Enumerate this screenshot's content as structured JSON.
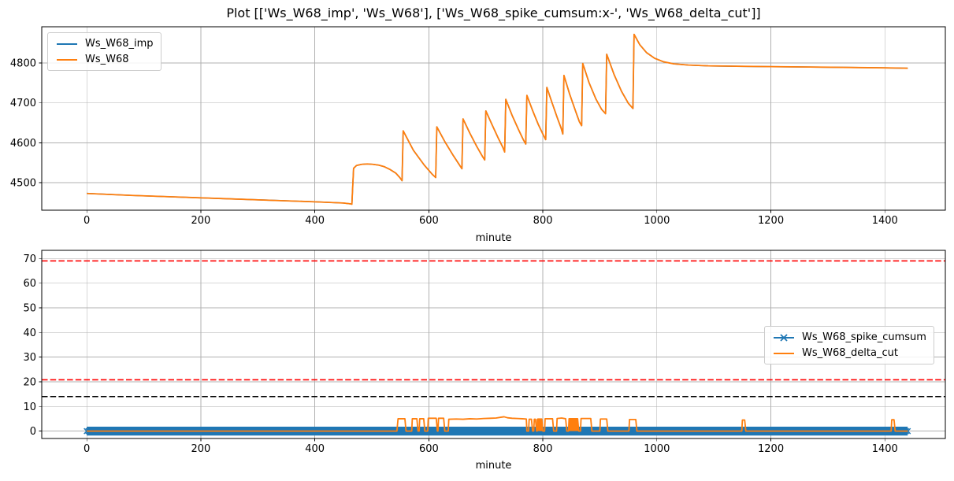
{
  "title": "Plot [['Ws_W68_imp', 'Ws_W68'], ['Ws_W68_spike_cumsum:x-', 'Ws_W68_delta_cut']]",
  "colors": {
    "blue": "#1f77b4",
    "orange": "#ff7f0e",
    "red": "#ff0000",
    "black": "#000000",
    "grid": "#b0b0b0",
    "spine": "#000000",
    "text": "#000000"
  },
  "chart_data": [
    {
      "type": "line",
      "xlabel": "minute",
      "xlim": [
        -79,
        1506
      ],
      "ylim": [
        4431,
        4891
      ],
      "xticks": [
        0,
        200,
        400,
        600,
        800,
        1000,
        1200,
        1400
      ],
      "yticks": [
        4500,
        4600,
        4700,
        4800
      ],
      "grid": true,
      "legend": {
        "position": "upper-left",
        "items": [
          {
            "label": "Ws_W68_imp",
            "color": "blue",
            "marker": null
          },
          {
            "label": "Ws_W68",
            "color": "orange",
            "marker": null
          }
        ]
      },
      "hlines": [],
      "series": [
        {
          "name": "Ws_W68_imp",
          "color": "blue",
          "width": 1.6,
          "points": [
            [
              0,
              4473
            ],
            [
              80,
              4468
            ],
            [
              160,
              4464
            ],
            [
              240,
              4460
            ],
            [
              320,
              4456
            ],
            [
              400,
              4452
            ],
            [
              450,
              4449
            ],
            [
              462,
              4447
            ],
            [
              465,
              4446
            ],
            [
              468,
              4536
            ],
            [
              473,
              4543
            ],
            [
              482,
              4546
            ],
            [
              492,
              4547
            ],
            [
              502,
              4546
            ],
            [
              512,
              4544
            ],
            [
              522,
              4540
            ],
            [
              532,
              4533
            ],
            [
              542,
              4524
            ],
            [
              549,
              4513
            ],
            [
              553,
              4505
            ],
            [
              555,
              4630
            ],
            [
              573,
              4581
            ],
            [
              592,
              4544
            ],
            [
              606,
              4521
            ],
            [
              612,
              4513
            ],
            [
              614,
              4640
            ],
            [
              628,
              4603
            ],
            [
              642,
              4570
            ],
            [
              653,
              4546
            ],
            [
              658,
              4535
            ],
            [
              660,
              4660
            ],
            [
              672,
              4624
            ],
            [
              684,
              4591
            ],
            [
              694,
              4566
            ],
            [
              698,
              4557
            ],
            [
              700,
              4680
            ],
            [
              711,
              4645
            ],
            [
              722,
              4611
            ],
            [
              730,
              4588
            ],
            [
              733,
              4577
            ],
            [
              735,
              4709
            ],
            [
              746,
              4669
            ],
            [
              757,
              4634
            ],
            [
              766,
              4607
            ],
            [
              770,
              4597
            ],
            [
              772,
              4719
            ],
            [
              782,
              4681
            ],
            [
              792,
              4646
            ],
            [
              801,
              4619
            ],
            [
              805,
              4608
            ],
            [
              807,
              4739
            ],
            [
              816,
              4701
            ],
            [
              825,
              4664
            ],
            [
              832,
              4637
            ],
            [
              835,
              4622
            ],
            [
              837,
              4769
            ],
            [
              847,
              4722
            ],
            [
              857,
              4681
            ],
            [
              864,
              4653
            ],
            [
              868,
              4643
            ],
            [
              870,
              4799
            ],
            [
              881,
              4751
            ],
            [
              893,
              4710
            ],
            [
              903,
              4684
            ],
            [
              910,
              4673
            ],
            [
              912,
              4822
            ],
            [
              925,
              4771
            ],
            [
              938,
              4729
            ],
            [
              950,
              4699
            ],
            [
              958,
              4686
            ],
            [
              960,
              4872
            ],
            [
              970,
              4846
            ],
            [
              982,
              4826
            ],
            [
              996,
              4812
            ],
            [
              1012,
              4803
            ],
            [
              1030,
              4798
            ],
            [
              1055,
              4795
            ],
            [
              1090,
              4793
            ],
            [
              1140,
              4792
            ],
            [
              1200,
              4791
            ],
            [
              1270,
              4790
            ],
            [
              1340,
              4789
            ],
            [
              1400,
              4788
            ],
            [
              1440,
              4787
            ]
          ]
        },
        {
          "name": "Ws_W68",
          "color": "orange",
          "width": 1.8,
          "points": [
            [
              0,
              4473
            ],
            [
              80,
              4468
            ],
            [
              160,
              4464
            ],
            [
              240,
              4460
            ],
            [
              320,
              4456
            ],
            [
              400,
              4452
            ],
            [
              450,
              4449
            ],
            [
              462,
              4447
            ],
            [
              465,
              4446
            ],
            [
              468,
              4536
            ],
            [
              473,
              4543
            ],
            [
              482,
              4546
            ],
            [
              492,
              4547
            ],
            [
              502,
              4546
            ],
            [
              512,
              4544
            ],
            [
              522,
              4540
            ],
            [
              532,
              4533
            ],
            [
              542,
              4524
            ],
            [
              549,
              4513
            ],
            [
              553,
              4505
            ],
            [
              555,
              4630
            ],
            [
              573,
              4581
            ],
            [
              592,
              4544
            ],
            [
              606,
              4521
            ],
            [
              612,
              4513
            ],
            [
              614,
              4640
            ],
            [
              628,
              4603
            ],
            [
              642,
              4570
            ],
            [
              653,
              4546
            ],
            [
              658,
              4535
            ],
            [
              660,
              4660
            ],
            [
              672,
              4624
            ],
            [
              684,
              4591
            ],
            [
              694,
              4566
            ],
            [
              698,
              4557
            ],
            [
              700,
              4680
            ],
            [
              711,
              4645
            ],
            [
              722,
              4611
            ],
            [
              730,
              4588
            ],
            [
              733,
              4577
            ],
            [
              735,
              4709
            ],
            [
              746,
              4669
            ],
            [
              757,
              4634
            ],
            [
              766,
              4607
            ],
            [
              770,
              4597
            ],
            [
              772,
              4719
            ],
            [
              782,
              4681
            ],
            [
              792,
              4646
            ],
            [
              801,
              4619
            ],
            [
              805,
              4608
            ],
            [
              807,
              4739
            ],
            [
              816,
              4701
            ],
            [
              825,
              4664
            ],
            [
              832,
              4637
            ],
            [
              835,
              4622
            ],
            [
              837,
              4769
            ],
            [
              847,
              4722
            ],
            [
              857,
              4681
            ],
            [
              864,
              4653
            ],
            [
              868,
              4643
            ],
            [
              870,
              4799
            ],
            [
              881,
              4751
            ],
            [
              893,
              4710
            ],
            [
              903,
              4684
            ],
            [
              910,
              4673
            ],
            [
              912,
              4822
            ],
            [
              925,
              4771
            ],
            [
              938,
              4729
            ],
            [
              950,
              4699
            ],
            [
              958,
              4686
            ],
            [
              960,
              4872
            ],
            [
              970,
              4846
            ],
            [
              982,
              4826
            ],
            [
              996,
              4812
            ],
            [
              1012,
              4803
            ],
            [
              1030,
              4798
            ],
            [
              1055,
              4795
            ],
            [
              1090,
              4793
            ],
            [
              1140,
              4792
            ],
            [
              1200,
              4791
            ],
            [
              1270,
              4790
            ],
            [
              1340,
              4789
            ],
            [
              1400,
              4788
            ],
            [
              1440,
              4787
            ]
          ]
        }
      ]
    },
    {
      "type": "line",
      "xlabel": "minute",
      "xlim": [
        -79,
        1506
      ],
      "ylim": [
        -3,
        73.3
      ],
      "xticks": [
        0,
        200,
        400,
        600,
        800,
        1000,
        1200,
        1400
      ],
      "yticks": [
        0,
        10,
        20,
        30,
        40,
        50,
        60,
        70
      ],
      "grid": true,
      "legend": {
        "position": "center-right",
        "items": [
          {
            "label": "Ws_W68_spike_cumsum",
            "color": "blue",
            "marker": "x"
          },
          {
            "label": "Ws_W68_delta_cut",
            "color": "orange",
            "marker": null
          }
        ]
      },
      "hlines": [
        {
          "y": 69.0,
          "color": "red",
          "style": "dashed"
        },
        {
          "y": 20.8,
          "color": "red",
          "style": "dashed"
        },
        {
          "y": 14.0,
          "color": "black",
          "style": "dashed"
        }
      ],
      "series": [
        {
          "name": "Ws_W68_spike_cumsum",
          "color": "blue",
          "band_halfwidth": 1.8,
          "marker": "x",
          "marker_xs": [
            0,
            3,
            1437,
            1440
          ],
          "points": [
            [
              0,
              0
            ],
            [
              1440,
              0
            ]
          ]
        },
        {
          "name": "Ws_W68_delta_cut",
          "color": "orange",
          "width": 1.8,
          "points": [
            [
              0,
              0
            ],
            [
              544,
              0
            ],
            [
              546,
              5.0
            ],
            [
              558,
              5.0
            ],
            [
              560,
              0
            ],
            [
              570,
              0
            ],
            [
              571,
              5.0
            ],
            [
              579,
              5.0
            ],
            [
              581,
              0
            ],
            [
              583,
              0
            ],
            [
              584,
              5.0
            ],
            [
              591,
              5.0
            ],
            [
              593,
              0
            ],
            [
              598,
              0
            ],
            [
              599,
              5.2
            ],
            [
              613,
              5.2
            ],
            [
              615,
              0
            ],
            [
              616,
              0
            ],
            [
              617,
              5.2
            ],
            [
              626,
              5.2
            ],
            [
              628,
              0
            ],
            [
              634,
              0
            ],
            [
              635,
              4.8
            ],
            [
              648,
              4.9
            ],
            [
              660,
              4.8
            ],
            [
              672,
              5.0
            ],
            [
              684,
              4.9
            ],
            [
              696,
              5.1
            ],
            [
              708,
              5.2
            ],
            [
              718,
              5.3
            ],
            [
              726,
              5.6
            ],
            [
              732,
              5.8
            ],
            [
              738,
              5.4
            ],
            [
              746,
              5.2
            ],
            [
              756,
              5.1
            ],
            [
              764,
              5.0
            ],
            [
              771,
              4.9
            ],
            [
              772,
              0
            ],
            [
              775,
              0
            ],
            [
              776,
              4.8
            ],
            [
              780,
              4.8
            ],
            [
              782,
              0
            ],
            [
              784,
              0
            ],
            [
              785,
              4.8
            ],
            [
              787,
              4.8
            ],
            [
              789,
              0
            ],
            [
              790,
              0
            ],
            [
              791,
              4.9
            ],
            [
              798,
              4.9
            ],
            [
              800,
              0
            ],
            [
              803,
              0
            ],
            [
              804,
              5.0
            ],
            [
              817,
              5.0
            ],
            [
              819,
              0
            ],
            [
              824,
              0
            ],
            [
              825,
              5.1
            ],
            [
              833,
              5.3
            ],
            [
              840,
              5.0
            ],
            [
              842,
              0
            ],
            [
              845,
              0
            ],
            [
              846,
              5.0
            ],
            [
              861,
              5.0
            ],
            [
              863,
              0
            ],
            [
              866,
              0
            ],
            [
              867,
              5.1
            ],
            [
              884,
              5.1
            ],
            [
              886,
              0
            ],
            [
              900,
              0
            ],
            [
              901,
              4.9
            ],
            [
              912,
              4.9
            ],
            [
              914,
              0
            ],
            [
              951,
              0
            ],
            [
              952,
              4.7
            ],
            [
              963,
              4.7
            ],
            [
              965,
              0
            ],
            [
              1149,
              0
            ],
            [
              1150,
              4.5
            ],
            [
              1154,
              4.5
            ],
            [
              1156,
              0
            ],
            [
              1411,
              0
            ],
            [
              1412,
              4.6
            ],
            [
              1416,
              4.6
            ],
            [
              1418,
              0
            ],
            [
              1440,
              0
            ]
          ]
        }
      ],
      "filled_pulses": [
        [
          789,
          799,
          4.9
        ],
        [
          846,
          862,
          5.0
        ]
      ]
    }
  ]
}
